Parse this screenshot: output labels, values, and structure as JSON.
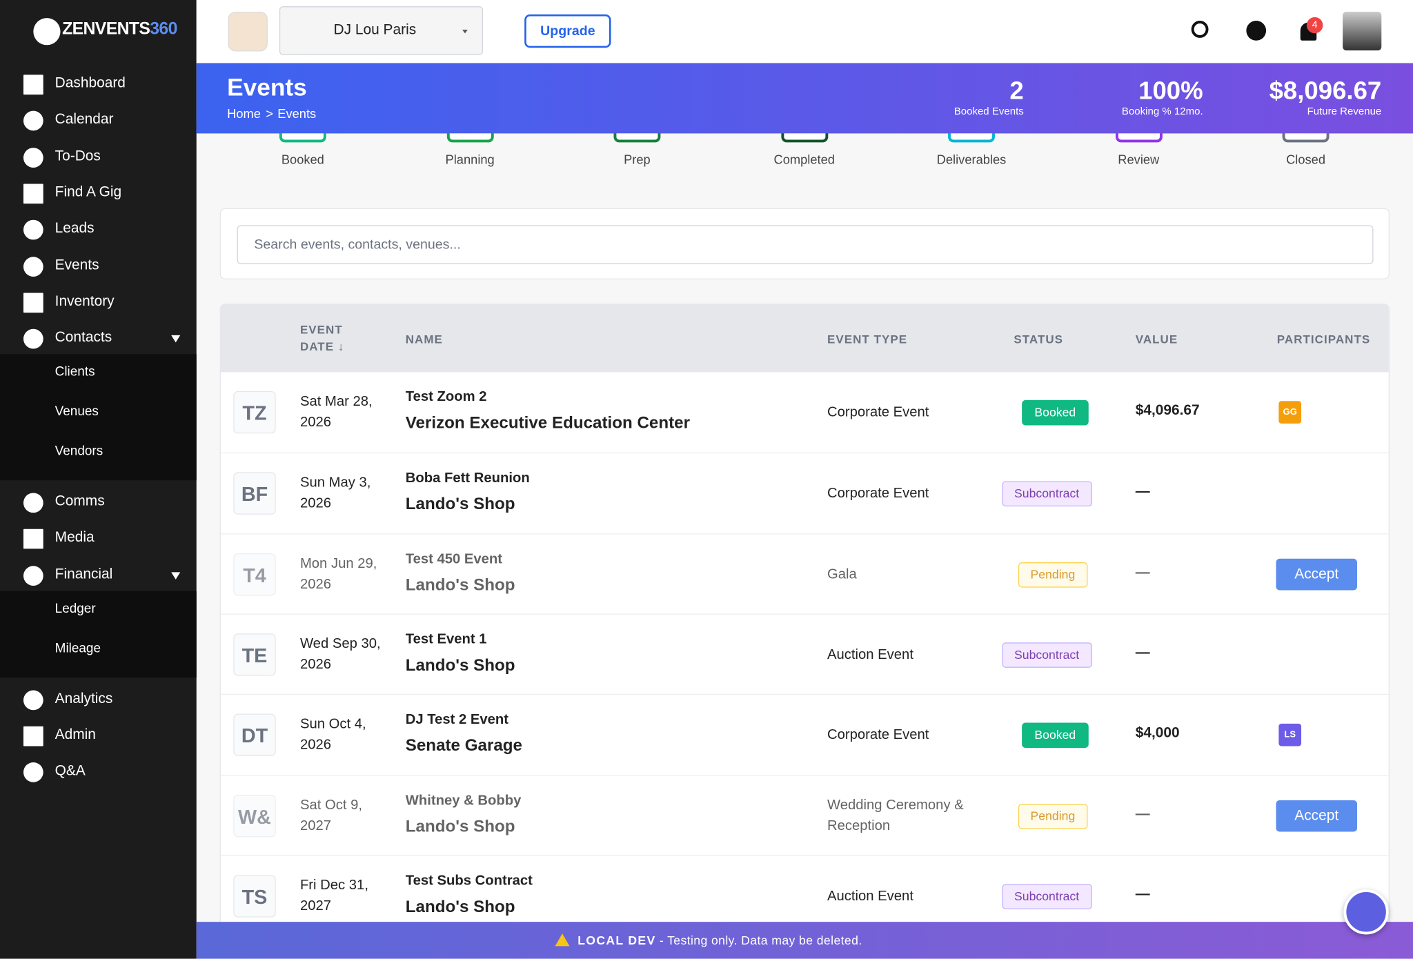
{
  "brand": {
    "name": "ZENVENTS",
    "suffix": "360"
  },
  "sidebar": {
    "items": [
      {
        "label": "Dashboard"
      },
      {
        "label": "Calendar"
      },
      {
        "label": "To-Dos"
      },
      {
        "label": "Find A Gig"
      },
      {
        "label": "Leads"
      },
      {
        "label": "Events"
      },
      {
        "label": "Inventory"
      },
      {
        "label": "Contacts",
        "children": [
          "Clients",
          "Venues",
          "Vendors"
        ]
      },
      {
        "label": "Comms"
      },
      {
        "label": "Media"
      },
      {
        "label": "Financial",
        "children": [
          "Ledger",
          "Mileage"
        ]
      },
      {
        "label": "Analytics"
      },
      {
        "label": "Admin"
      },
      {
        "label": "Q&A"
      }
    ]
  },
  "topbar": {
    "profile": "DJ Lou Paris",
    "upgrade": "Upgrade",
    "notifications": "4"
  },
  "header": {
    "title": "Events",
    "breadcrumb": [
      "Home",
      ">",
      "Events"
    ],
    "stats": [
      {
        "value": "2",
        "label": "Booked Events"
      },
      {
        "value": "100%",
        "label": "Booking % 12mo."
      },
      {
        "value": "$8,096.67",
        "label": "Future Revenue"
      }
    ]
  },
  "pipeline": [
    {
      "label": "Booked",
      "color": "#10b981"
    },
    {
      "label": "Planning",
      "color": "#16a34a"
    },
    {
      "label": "Prep",
      "color": "#15803d"
    },
    {
      "label": "Completed",
      "color": "#14532d"
    },
    {
      "label": "Deliverables",
      "color": "#06b6d4"
    },
    {
      "label": "Review",
      "color": "#9333ea"
    },
    {
      "label": "Closed",
      "color": "#6b7280"
    }
  ],
  "search": {
    "placeholder": "Search events, contacts, venues..."
  },
  "table": {
    "headers": [
      "EVENT DATE ↓",
      "NAME",
      "EVENT TYPE",
      "STATUS",
      "VALUE",
      "PARTICIPANTS"
    ],
    "rows": [
      {
        "initials": "TZ",
        "date": "Sat Mar 28, 2026",
        "name": "Test Zoom 2",
        "venue": "Verizon Executive Education Center",
        "type": "Corporate Event",
        "status": "Booked",
        "value": "$4,096.67",
        "participant": {
          "initials": "GG",
          "color": "#f59e0b"
        }
      },
      {
        "initials": "BF",
        "date": "Sun May 3, 2026",
        "name": "Boba Fett Reunion",
        "venue": "Lando's Shop",
        "type": "Corporate Event",
        "status": "Subcontract",
        "value": "—"
      },
      {
        "initials": "T4",
        "date": "Mon Jun 29, 2026",
        "name": "Test 450 Event",
        "venue": "Lando's Shop",
        "type": "Gala",
        "status": "Pending",
        "value": "—",
        "action": "Accept"
      },
      {
        "initials": "TE",
        "date": "Wed Sep 30, 2026",
        "name": "Test Event 1",
        "venue": "Lando's Shop",
        "type": "Auction Event",
        "status": "Subcontract",
        "value": "—"
      },
      {
        "initials": "DT",
        "date": "Sun Oct 4, 2026",
        "name": "DJ Test 2 Event",
        "venue": "Senate Garage",
        "type": "Corporate Event",
        "status": "Booked",
        "value": "$4,000",
        "participant": {
          "initials": "LS",
          "color": "#6d5ce7"
        }
      },
      {
        "initials": "W&",
        "date": "Sat Oct 9, 2027",
        "name": "Whitney & Bobby",
        "venue": "Lando's Shop",
        "type": "Wedding Ceremony & Reception",
        "status": "Pending",
        "value": "—",
        "action": "Accept"
      },
      {
        "initials": "TS",
        "date": "Fri Dec 31, 2027",
        "name": "Test Subs Contract",
        "venue": "Lando's Shop",
        "type": "Auction Event",
        "status": "Subcontract",
        "value": "—"
      }
    ]
  },
  "banner": {
    "label": "LOCAL DEV",
    "text": " - Testing only. Data may be deleted."
  }
}
